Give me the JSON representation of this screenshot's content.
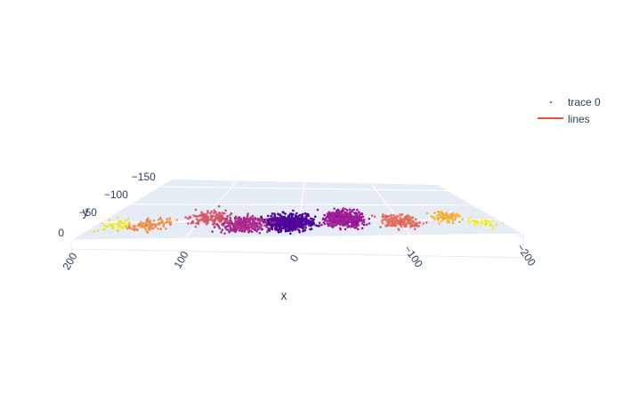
{
  "chart_data": {
    "type": "scatter3d",
    "title": "",
    "axes": {
      "x": {
        "title": "x",
        "range": [
          200,
          -200
        ],
        "ticks": [
          200,
          100,
          0,
          -100,
          -200
        ],
        "tick_labels": [
          "200",
          "100",
          "0",
          "−100",
          "−200"
        ]
      },
      "y": {
        "title": "y",
        "range": [
          0,
          -170
        ],
        "ticks": [
          0,
          -50,
          -100,
          -150
        ],
        "tick_labels": [
          "0",
          "−50",
          "−100",
          "−150"
        ]
      },
      "z": {
        "title": "",
        "visible_ticks": false
      }
    },
    "series": [
      {
        "name": "trace 0",
        "mode": "markers",
        "colorscale": "plasma",
        "clusters": [
          {
            "x": 10,
            "y": -45,
            "spread_x": 35,
            "spread_y": 35,
            "count": 600,
            "color_value": 0.15
          },
          {
            "x": -45,
            "y": -55,
            "spread_x": 30,
            "spread_y": 40,
            "count": 450,
            "color_value": 0.35
          },
          {
            "x": 55,
            "y": -40,
            "spread_x": 35,
            "spread_y": 35,
            "count": 300,
            "color_value": 0.4
          },
          {
            "x": 95,
            "y": -60,
            "spread_x": 30,
            "spread_y": 30,
            "count": 150,
            "color_value": 0.55
          },
          {
            "x": -100,
            "y": -45,
            "spread_x": 30,
            "spread_y": 30,
            "count": 180,
            "color_value": 0.62
          },
          {
            "x": 145,
            "y": -40,
            "spread_x": 30,
            "spread_y": 25,
            "count": 100,
            "color_value": 0.72
          },
          {
            "x": -150,
            "y": -60,
            "spread_x": 25,
            "spread_y": 25,
            "count": 90,
            "color_value": 0.82
          },
          {
            "x": 180,
            "y": -40,
            "spread_x": 20,
            "spread_y": 20,
            "count": 40,
            "color_value": 0.95
          },
          {
            "x": -180,
            "y": -40,
            "spread_x": 20,
            "spread_y": 20,
            "count": 30,
            "color_value": 0.97
          }
        ]
      },
      {
        "name": "lines",
        "mode": "lines",
        "color": "#ef553b"
      }
    ],
    "legend": {
      "position": "top-right",
      "entries": [
        "trace 0",
        "lines"
      ]
    }
  },
  "colors": {
    "scene_bg": "#e5ecf6",
    "grid": "#ffffff",
    "text": "#2a3f5f",
    "lines_trace": "#ef553b",
    "trace0_marker": "#636efa"
  }
}
